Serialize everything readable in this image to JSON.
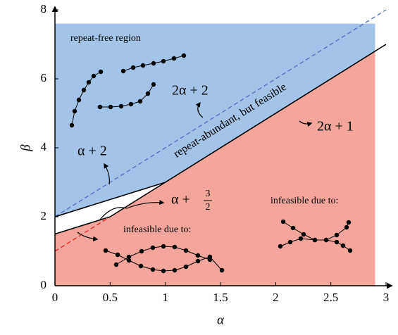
{
  "chart_data": {
    "type": "region",
    "xlabel": "α",
    "ylabel": "β",
    "xlim": [
      0,
      3
    ],
    "ylim": [
      0,
      8
    ],
    "xticks": [
      0,
      0.5,
      1,
      1.5,
      2,
      2.5,
      3
    ],
    "yticks": [
      0,
      2,
      4,
      6,
      8
    ],
    "upper_color": "#a3c4e8",
    "lower_color": "#f4a69c",
    "series": [
      {
        "name": "2α + 2",
        "style": "dashed",
        "color": "#4a6fc4",
        "x": [
          0,
          3
        ],
        "values": [
          2,
          8
        ]
      },
      {
        "name": "2α + 1",
        "style": "dashed",
        "color": "#e8231a",
        "x": [
          0,
          0.5
        ],
        "values": [
          1,
          2
        ]
      },
      {
        "name": "α + 2",
        "style": "solid",
        "color": "#000000",
        "role": "upper",
        "x": [
          0,
          1,
          3
        ],
        "values": [
          2,
          3,
          7
        ]
      },
      {
        "name": "α + 3/2",
        "style": "solid",
        "color": "#000000",
        "role": "lower",
        "x": [
          0,
          0.5
        ],
        "values": [
          1.5,
          2
        ]
      }
    ],
    "annotations": {
      "free": "repeat-free region",
      "abundant": "repeat-abundant, but feasible",
      "infeasible_left": "infeasible due to:",
      "infeasible_right": "infeasible due to:",
      "two_a_plus_2": "2α + 2",
      "a_plus_2": "α + 2",
      "two_a_plus_1": "2α + 1",
      "a_plus": "α +",
      "frac_num": "3",
      "frac_den": "2"
    }
  }
}
